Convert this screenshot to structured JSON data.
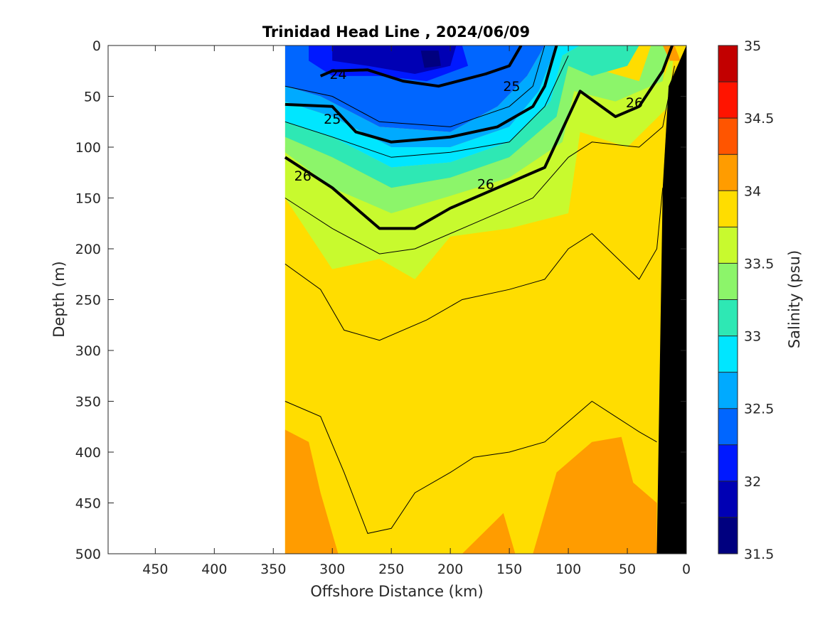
{
  "chart_data": {
    "type": "heatmap",
    "title": "Trinidad Head Line , 2024/06/09",
    "xlabel": "Offshore Distance (km)",
    "ylabel": "Depth (m)",
    "xlim": [
      490,
      0
    ],
    "ylim": [
      500,
      0
    ],
    "x_reversed": true,
    "y_reversed": true,
    "x_ticks": [
      450,
      400,
      350,
      300,
      250,
      200,
      150,
      100,
      50,
      0
    ],
    "y_ticks": [
      0,
      50,
      100,
      150,
      200,
      250,
      300,
      350,
      400,
      450,
      500
    ],
    "data_extent_km": [
      340,
      0
    ],
    "grid": false,
    "colorbar": {
      "label": "Salinity (psu)",
      "range": [
        31.5,
        35
      ],
      "ticks": [
        35,
        34.5,
        34,
        33.5,
        33,
        32.5,
        32,
        31.5
      ],
      "levels": [
        {
          "from": 31.5,
          "to": 31.75,
          "color": "#00007f"
        },
        {
          "from": 31.75,
          "to": 32.0,
          "color": "#0000b4"
        },
        {
          "from": 32.0,
          "to": 32.25,
          "color": "#0019ff"
        },
        {
          "from": 32.25,
          "to": 32.5,
          "color": "#0066ff"
        },
        {
          "from": 32.5,
          "to": 32.75,
          "color": "#00aaff"
        },
        {
          "from": 32.75,
          "to": 33.0,
          "color": "#00e6ff"
        },
        {
          "from": 33.0,
          "to": 33.25,
          "color": "#2ee8b4"
        },
        {
          "from": 33.25,
          "to": 33.5,
          "color": "#8cf56a"
        },
        {
          "from": 33.5,
          "to": 33.75,
          "color": "#c8fa2e"
        },
        {
          "from": 33.75,
          "to": 34.0,
          "color": "#ffdd00"
        },
        {
          "from": 34.0,
          "to": 34.25,
          "color": "#ff9c00"
        },
        {
          "from": 34.25,
          "to": 34.5,
          "color": "#ff5500"
        },
        {
          "from": 34.5,
          "to": 34.75,
          "color": "#ff1400"
        },
        {
          "from": 34.75,
          "to": 35.0,
          "color": "#c20000"
        }
      ]
    },
    "density_contour_labels": [
      {
        "text": "24",
        "x": 295,
        "y": 28
      },
      {
        "text": "25",
        "x": 148,
        "y": 40
      },
      {
        "text": "25",
        "x": 300,
        "y": 72
      },
      {
        "text": "26",
        "x": 44,
        "y": 56
      },
      {
        "text": "26",
        "x": 325,
        "y": 128
      },
      {
        "text": "26",
        "x": 170,
        "y": 136
      }
    ],
    "salinity_regions": [
      {
        "level": "33.75-34.0",
        "color": "#ffdd00",
        "points": [
          [
            340,
            150
          ],
          [
            300,
            180
          ],
          [
            250,
            195
          ],
          [
            200,
            190
          ],
          [
            150,
            185
          ],
          [
            100,
            165
          ],
          [
            90,
            85
          ],
          [
            50,
            80
          ],
          [
            20,
            60
          ],
          [
            25,
            500
          ],
          [
            340,
            500
          ]
        ]
      },
      {
        "level": "33.5-33.75",
        "color": "#c8fa2e",
        "points": [
          [
            340,
            100
          ],
          [
            300,
            130
          ],
          [
            250,
            160
          ],
          [
            200,
            148
          ],
          [
            150,
            130
          ],
          [
            105,
            95
          ],
          [
            95,
            45
          ],
          [
            60,
            55
          ],
          [
            20,
            35
          ],
          [
            10,
            0
          ],
          [
            15,
            60
          ],
          [
            50,
            100
          ],
          [
            90,
            85
          ],
          [
            100,
            165
          ],
          [
            150,
            180
          ],
          [
            200,
            188
          ],
          [
            230,
            230
          ],
          [
            260,
            210
          ],
          [
            300,
            220
          ],
          [
            340,
            150
          ]
        ]
      },
      {
        "level": "33.25-33.5",
        "color": "#8cf56a",
        "points": [
          [
            340,
            90
          ],
          [
            300,
            110
          ],
          [
            250,
            140
          ],
          [
            200,
            130
          ],
          [
            150,
            110
          ],
          [
            110,
            70
          ],
          [
            100,
            20
          ],
          [
            70,
            25
          ],
          [
            40,
            35
          ],
          [
            30,
            0
          ],
          [
            15,
            0
          ],
          [
            20,
            35
          ],
          [
            60,
            55
          ],
          [
            95,
            45
          ],
          [
            105,
            95
          ],
          [
            150,
            130
          ],
          [
            200,
            148
          ],
          [
            250,
            165
          ],
          [
            300,
            140
          ],
          [
            340,
            105
          ]
        ]
      },
      {
        "level": "33.0-33.25",
        "color": "#2ee8b4",
        "points": [
          [
            340,
            75
          ],
          [
            300,
            90
          ],
          [
            250,
            120
          ],
          [
            200,
            115
          ],
          [
            150,
            95
          ],
          [
            115,
            55
          ],
          [
            105,
            10
          ],
          [
            90,
            0
          ],
          [
            40,
            0
          ],
          [
            50,
            20
          ],
          [
            80,
            30
          ],
          [
            100,
            20
          ],
          [
            110,
            70
          ],
          [
            150,
            110
          ],
          [
            200,
            130
          ],
          [
            250,
            140
          ],
          [
            300,
            110
          ],
          [
            340,
            90
          ]
        ]
      },
      {
        "level": "32.75-33.0",
        "color": "#00e6ff",
        "points": [
          [
            340,
            55
          ],
          [
            300,
            70
          ],
          [
            250,
            100
          ],
          [
            200,
            100
          ],
          [
            150,
            80
          ],
          [
            125,
            45
          ],
          [
            110,
            0
          ],
          [
            90,
            0
          ],
          [
            105,
            10
          ],
          [
            115,
            55
          ],
          [
            150,
            95
          ],
          [
            200,
            115
          ],
          [
            250,
            120
          ],
          [
            300,
            90
          ],
          [
            340,
            75
          ]
        ]
      },
      {
        "level": "32.5-32.75",
        "color": "#00aaff",
        "points": [
          [
            340,
            40
          ],
          [
            310,
            50
          ],
          [
            260,
            80
          ],
          [
            200,
            85
          ],
          [
            160,
            60
          ],
          [
            135,
            30
          ],
          [
            120,
            0
          ],
          [
            110,
            0
          ],
          [
            125,
            45
          ],
          [
            150,
            80
          ],
          [
            200,
            100
          ],
          [
            250,
            100
          ],
          [
            300,
            70
          ],
          [
            340,
            55
          ]
        ]
      },
      {
        "level": "32.25-32.5",
        "color": "#0066ff",
        "points": [
          [
            340,
            0
          ],
          [
            120,
            0
          ],
          [
            135,
            30
          ],
          [
            160,
            60
          ],
          [
            200,
            85
          ],
          [
            260,
            80
          ],
          [
            310,
            50
          ],
          [
            340,
            40
          ]
        ]
      },
      {
        "level": "32.0-32.25",
        "color": "#0019ff",
        "points": [
          [
            320,
            0
          ],
          [
            190,
            0
          ],
          [
            185,
            20
          ],
          [
            220,
            35
          ],
          [
            260,
            30
          ],
          [
            300,
            30
          ],
          [
            320,
            15
          ]
        ]
      },
      {
        "level": "31.75-32.0",
        "color": "#0000b4",
        "points": [
          [
            300,
            0
          ],
          [
            195,
            0
          ],
          [
            200,
            20
          ],
          [
            230,
            28
          ],
          [
            270,
            20
          ],
          [
            300,
            15
          ]
        ]
      },
      {
        "level": "31.5-31.75",
        "color": "#00007f",
        "points": [
          [
            225,
            5
          ],
          [
            210,
            5
          ],
          [
            208,
            20
          ],
          [
            222,
            22
          ]
        ]
      },
      {
        "level": "34.0-34.25",
        "color": "#ff9c00",
        "points": [
          [
            340,
            378
          ],
          [
            320,
            390
          ],
          [
            310,
            440
          ],
          [
            295,
            500
          ],
          [
            340,
            500
          ]
        ]
      },
      {
        "level": "34.0-34.25",
        "color": "#ff9c00",
        "points": [
          [
            190,
            500
          ],
          [
            155,
            460
          ],
          [
            145,
            500
          ]
        ]
      },
      {
        "level": "34.0-34.25",
        "color": "#ff9c00",
        "points": [
          [
            130,
            500
          ],
          [
            110,
            420
          ],
          [
            80,
            390
          ],
          [
            55,
            385
          ],
          [
            45,
            430
          ],
          [
            25,
            450
          ],
          [
            25,
            500
          ]
        ]
      },
      {
        "level": "34.0-34.25",
        "color": "#ff9c00",
        "points": [
          [
            20,
            0
          ],
          [
            10,
            0
          ],
          [
            5,
            15
          ],
          [
            14,
            15
          ]
        ]
      }
    ],
    "isopycnals_thick": [
      {
        "level": 24,
        "points": [
          [
            310,
            30
          ],
          [
            300,
            25
          ],
          [
            270,
            24
          ],
          [
            240,
            35
          ],
          [
            210,
            40
          ],
          [
            170,
            28
          ],
          [
            150,
            20
          ],
          [
            140,
            0
          ]
        ]
      },
      {
        "level": 25,
        "points": [
          [
            340,
            58
          ],
          [
            300,
            60
          ],
          [
            280,
            85
          ],
          [
            250,
            95
          ],
          [
            200,
            90
          ],
          [
            160,
            80
          ],
          [
            130,
            60
          ],
          [
            120,
            40
          ],
          [
            110,
            0
          ]
        ]
      },
      {
        "level": 26,
        "points": [
          [
            340,
            110
          ],
          [
            300,
            140
          ],
          [
            260,
            180
          ],
          [
            230,
            180
          ],
          [
            200,
            160
          ],
          [
            160,
            140
          ],
          [
            120,
            120
          ],
          [
            110,
            95
          ],
          [
            90,
            45
          ],
          [
            60,
            70
          ],
          [
            40,
            60
          ],
          [
            20,
            25
          ],
          [
            12,
            0
          ]
        ]
      }
    ],
    "isopycnals_thin": [
      [
        [
          340,
          40
        ],
        [
          300,
          50
        ],
        [
          260,
          75
        ],
        [
          200,
          80
        ],
        [
          150,
          60
        ],
        [
          130,
          40
        ],
        [
          120,
          0
        ]
      ],
      [
        [
          340,
          75
        ],
        [
          300,
          90
        ],
        [
          250,
          110
        ],
        [
          200,
          105
        ],
        [
          150,
          95
        ],
        [
          120,
          60
        ],
        [
          100,
          10
        ]
      ],
      [
        [
          340,
          150
        ],
        [
          300,
          180
        ],
        [
          260,
          205
        ],
        [
          230,
          200
        ],
        [
          180,
          175
        ],
        [
          130,
          150
        ],
        [
          100,
          110
        ],
        [
          80,
          95
        ],
        [
          40,
          100
        ],
        [
          20,
          80
        ],
        [
          10,
          20
        ]
      ],
      [
        [
          340,
          215
        ],
        [
          310,
          240
        ],
        [
          290,
          280
        ],
        [
          260,
          290
        ],
        [
          220,
          270
        ],
        [
          190,
          250
        ],
        [
          150,
          240
        ],
        [
          120,
          230
        ],
        [
          100,
          200
        ],
        [
          80,
          185
        ],
        [
          40,
          230
        ],
        [
          25,
          200
        ],
        [
          20,
          140
        ]
      ],
      [
        [
          340,
          350
        ],
        [
          310,
          365
        ],
        [
          290,
          420
        ],
        [
          270,
          480
        ],
        [
          250,
          475
        ],
        [
          230,
          440
        ],
        [
          200,
          420
        ],
        [
          180,
          405
        ],
        [
          150,
          400
        ],
        [
          120,
          390
        ],
        [
          100,
          370
        ],
        [
          80,
          350
        ],
        [
          60,
          365
        ],
        [
          40,
          380
        ],
        [
          25,
          390
        ]
      ]
    ],
    "land_mask": {
      "color": "#000000",
      "points": [
        [
          25,
          500
        ],
        [
          20,
          140
        ],
        [
          15,
          40
        ],
        [
          0,
          0
        ],
        [
          0,
          500
        ]
      ]
    }
  }
}
